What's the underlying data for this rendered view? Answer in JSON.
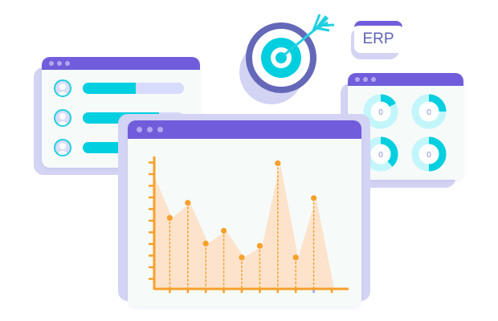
{
  "erp_card": {
    "label": "ERP"
  },
  "icons": {
    "target": "target-arrow-icon",
    "user": "user-avatar-icon"
  },
  "colors": {
    "window_titlebar": "#715ddb",
    "accent_cyan": "#00cfe0",
    "chart_line": "#f7a02b",
    "chart_area": "#fde3cc",
    "shadow": "#d3d4f4"
  },
  "user_list": {
    "items": [
      {
        "progress": 0.52
      },
      {
        "progress": 0.75
      },
      {
        "progress": 0.6
      }
    ]
  },
  "donuts": {
    "items": [
      {
        "value": "0",
        "fraction": 0.17
      },
      {
        "value": "0",
        "fraction": 0.25
      },
      {
        "value": "0",
        "fraction": 0.38
      },
      {
        "value": "0",
        "fraction": 0.5
      }
    ]
  },
  "chart_data": {
    "type": "area",
    "x": [
      0,
      1,
      2,
      3,
      4,
      5,
      6,
      7,
      8,
      9,
      10
    ],
    "values": [
      9.7,
      6.1,
      7.4,
      3.9,
      5.0,
      2.7,
      3.7,
      10.8,
      2.7,
      7.8,
      0
    ],
    "marked_points": [
      1,
      2,
      3,
      4,
      5,
      6,
      7,
      8,
      9
    ],
    "ylim": [
      0,
      11.5
    ],
    "xlim": [
      0,
      10.8
    ],
    "y_ticks": 11,
    "x_ticks": 10,
    "grid": false
  }
}
